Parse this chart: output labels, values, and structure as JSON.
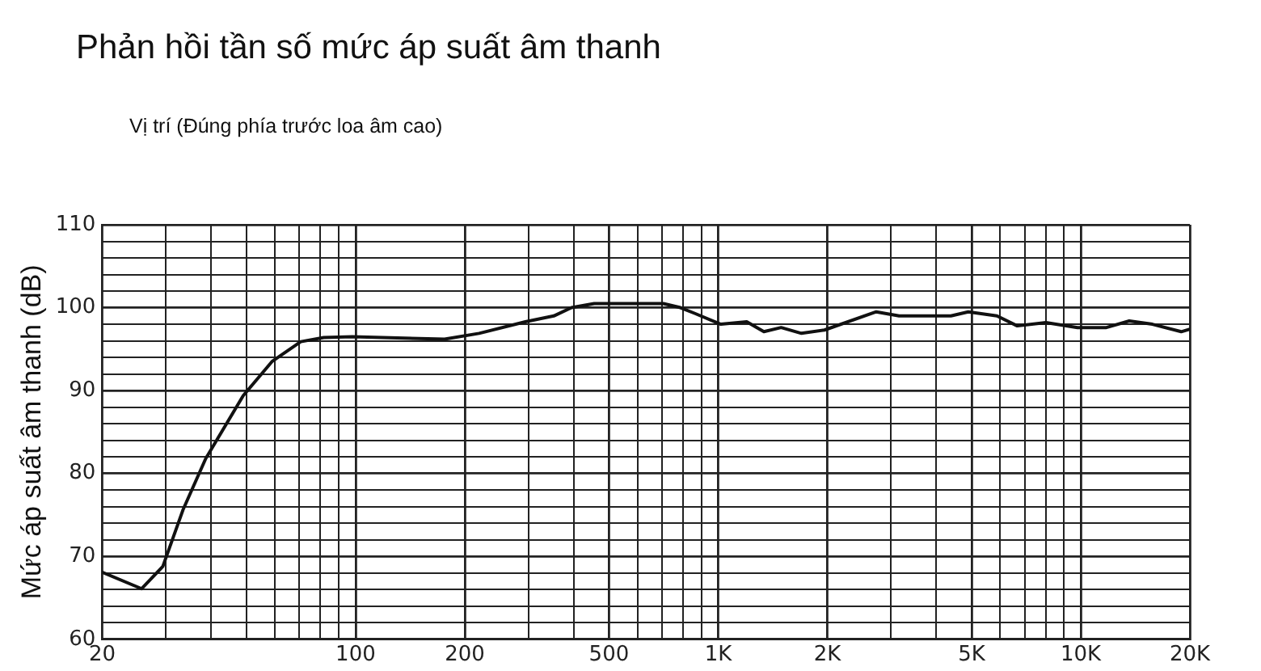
{
  "chart_data": {
    "type": "line",
    "title": "Phản hồi tần số mức áp suất âm thanh",
    "subtitle": "Vị trí (Đúng phía trước loa âm cao)",
    "ylabel": "Mức áp suất âm thanh (dB)",
    "log": "x",
    "grid": true,
    "legend": false,
    "marker": "none",
    "line_style": "solid",
    "x": [
      20,
      25.7,
      29.4,
      33.4,
      38.6,
      49,
      58.8,
      70.6,
      81.7,
      98,
      176,
      219,
      294,
      352,
      394,
      455,
      706,
      787,
      863,
      1017,
      1199,
      1337,
      1492,
      1697,
      1964,
      2729,
      3155,
      4385,
      4896,
      5875,
      6683,
      8016,
      9800,
      11770,
      13610,
      15770,
      18930,
      20000
    ],
    "series": [
      {
        "color": "#111111",
        "values": [
          68.1,
          66.1,
          68.8,
          75.6,
          81.8,
          89.4,
          93.5,
          95.9,
          96.4,
          96.5,
          96.2,
          96.9,
          98.3,
          99.0,
          100.0,
          100.5,
          100.5,
          100.0,
          99.3,
          98.0,
          98.3,
          97.1,
          97.6,
          96.9,
          97.3,
          99.5,
          99.0,
          99.0,
          99.5,
          99.0,
          97.8,
          98.2,
          97.6,
          97.6,
          98.4,
          98.0,
          97.1,
          97.4
        ]
      }
    ],
    "xlim": [
      20,
      20000
    ],
    "xticks": [
      20,
      {
        "value": 30,
        "label": null
      },
      {
        "value": 40,
        "label": null
      },
      {
        "value": 50,
        "label": null
      },
      {
        "value": 60,
        "label": null
      },
      {
        "value": 70,
        "label": null
      },
      {
        "value": 80,
        "label": null
      },
      {
        "value": 90,
        "label": null
      },
      100,
      200,
      {
        "value": 300,
        "label": null
      },
      {
        "value": 400,
        "label": null
      },
      500,
      {
        "value": 600,
        "label": null
      },
      {
        "value": 700,
        "label": null
      },
      {
        "value": 800,
        "label": null
      },
      {
        "value": 900,
        "label": null
      },
      {
        "value": 1000,
        "label": "1K"
      },
      {
        "value": 2000,
        "label": "2K"
      },
      {
        "value": 3000,
        "label": null
      },
      {
        "value": 4000,
        "label": null
      },
      {
        "value": 5000,
        "label": "5K"
      },
      {
        "value": 6000,
        "label": null
      },
      {
        "value": 7000,
        "label": null
      },
      {
        "value": 8000,
        "label": null
      },
      {
        "value": 9000,
        "label": null
      },
      {
        "value": 10000,
        "label": "10K"
      },
      {
        "value": 20000,
        "label": "20K"
      }
    ],
    "ylim": [
      60,
      110
    ],
    "yticks": [
      60,
      {
        "value": 62,
        "label": null
      },
      {
        "value": 64,
        "label": null
      },
      {
        "value": 66,
        "label": null
      },
      {
        "value": 68,
        "label": null
      },
      70,
      {
        "value": 72,
        "label": null
      },
      {
        "value": 74,
        "label": null
      },
      {
        "value": 76,
        "label": null
      },
      {
        "value": 78,
        "label": null
      },
      80,
      {
        "value": 82,
        "label": null
      },
      {
        "value": 84,
        "label": null
      },
      {
        "value": 86,
        "label": null
      },
      {
        "value": 88,
        "label": null
      },
      90,
      {
        "value": 92,
        "label": null
      },
      {
        "value": 94,
        "label": null
      },
      {
        "value": 96,
        "label": null
      },
      {
        "value": 98,
        "label": null
      },
      100,
      {
        "value": 102,
        "label": null
      },
      {
        "value": 104,
        "label": null
      },
      {
        "value": 106,
        "label": null
      },
      {
        "value": 108,
        "label": null
      },
      110
    ]
  }
}
